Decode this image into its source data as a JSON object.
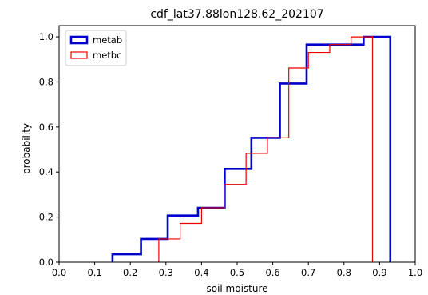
{
  "chart_data": {
    "type": "line",
    "drawstyle": "steps-post",
    "title": "cdf_lat37.88lon128.62_202107",
    "xlabel": "soil moisture",
    "ylabel": "probability",
    "xlim": [
      0.0,
      1.0
    ],
    "ylim": [
      0.0,
      1.05
    ],
    "xticks": [
      "0.0",
      "0.1",
      "0.2",
      "0.3",
      "0.4",
      "0.5",
      "0.6",
      "0.7",
      "0.8",
      "0.9",
      "1.0"
    ],
    "yticks": [
      "0.0",
      "0.2",
      "0.4",
      "0.6",
      "0.8",
      "1.0"
    ],
    "grid": false,
    "legend_position": "upper-left",
    "series": [
      {
        "name": "metab",
        "color": "#0000cc",
        "x": [
          0.15,
          0.23,
          0.305,
          0.39,
          0.465,
          0.54,
          0.62,
          0.695,
          0.855,
          0.93
        ],
        "y": [
          0.035,
          0.103,
          0.207,
          0.241,
          0.414,
          0.552,
          0.793,
          0.966,
          1.0,
          0.0
        ]
      },
      {
        "name": "metbc",
        "color": "#ee0000",
        "x": [
          0.28,
          0.34,
          0.4,
          0.465,
          0.525,
          0.585,
          0.645,
          0.7,
          0.76,
          0.82,
          0.85,
          0.88
        ],
        "y": [
          0.103,
          0.172,
          0.241,
          0.345,
          0.483,
          0.552,
          0.862,
          0.931,
          0.966,
          1.0,
          1.0,
          0.0
        ]
      }
    ]
  }
}
